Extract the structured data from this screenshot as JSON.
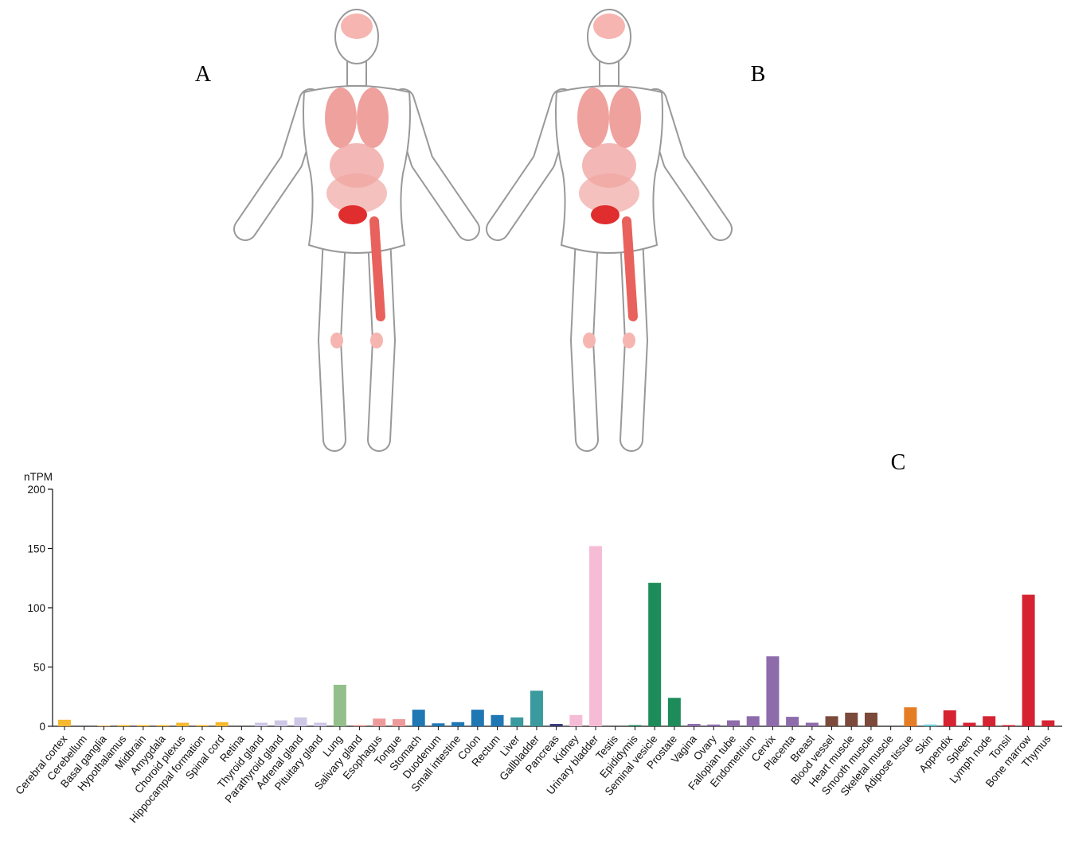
{
  "panel_labels": [
    "A",
    "B",
    "C"
  ],
  "chart_data": {
    "type": "bar",
    "y_label": "nTPM",
    "categories": [
      "Cerebral cortex",
      "Cerebellum",
      "Basal ganglia",
      "Hypothalamus",
      "Midbrain",
      "Amygdala",
      "Choroid plexus",
      "Hippocampal formation",
      "Spinal cord",
      "Retina",
      "Thyroid gland",
      "Parathyroid gland",
      "Adrenal gland",
      "Pituitary gland",
      "Lung",
      "Salivary gland",
      "Esophagus",
      "Tongue",
      "Stomach",
      "Duodenum",
      "Small intestine",
      "Colon",
      "Rectum",
      "Liver",
      "Gallbladder",
      "Pancreas",
      "Kidney",
      "Urinary bladder",
      "Testis",
      "Epididymis",
      "Seminal vesicle",
      "Prostate",
      "Vagina",
      "Ovary",
      "Fallopian tube",
      "Endometrium",
      "Cervix",
      "Placenta",
      "Breast",
      "Blood vessel",
      "Heart muscle",
      "Smooth muscle",
      "Skeletal muscle",
      "Adipose tissue",
      "Skin",
      "Appendix",
      "Spleen",
      "Lymph node",
      "Tonsil",
      "Bone marrow",
      "Thymus"
    ],
    "values": [
      5.5,
      0,
      0.5,
      1,
      1,
      1,
      3,
      1,
      3.5,
      0,
      3,
      5,
      7.5,
      3,
      35,
      1,
      6.5,
      6,
      14,
      2.5,
      3.5,
      14,
      9.5,
      7.5,
      30,
      2,
      9.5,
      152,
      0,
      1,
      121,
      24,
      2,
      1.5,
      5,
      8.5,
      59,
      8,
      3,
      8.5,
      11.5,
      11.5,
      0,
      16,
      1.5,
      13.5,
      3,
      8.5,
      1,
      111,
      5
    ],
    "colors": [
      "#f5b82e",
      "#f5b82e",
      "#f5b82e",
      "#f5b82e",
      "#f5b82e",
      "#f5b82e",
      "#f5b82e",
      "#f5b82e",
      "#f5b82e",
      "#cfc7e6",
      "#cfc7e6",
      "#cfc7e6",
      "#cfc7e6",
      "#cfc7e6",
      "#93c08a",
      "#ee9a9a",
      "#ee9a9a",
      "#ee9a9a",
      "#1f77b4",
      "#1f77b4",
      "#1f77b4",
      "#1f77b4",
      "#1f77b4",
      "#3a9a9d",
      "#3a9a9d",
      "#3a3a7a",
      "#f6bcd6",
      "#f6bcd6",
      "#1e8c5a",
      "#1e8c5a",
      "#1e8c5a",
      "#1e8c5a",
      "#8e6bab",
      "#8e6bab",
      "#8e6bab",
      "#8e6bab",
      "#8e6bab",
      "#8e6bab",
      "#8e6bab",
      "#7b4a3a",
      "#7b4a3a",
      "#7b4a3a",
      "#7b4a3a",
      "#e57d25",
      "#6ccbd8",
      "#d62331",
      "#d62331",
      "#d62331",
      "#d62331",
      "#d62331",
      "#d62331"
    ],
    "ylim": [
      0,
      200
    ],
    "yticks": [
      0,
      50,
      100,
      150,
      200
    ]
  }
}
